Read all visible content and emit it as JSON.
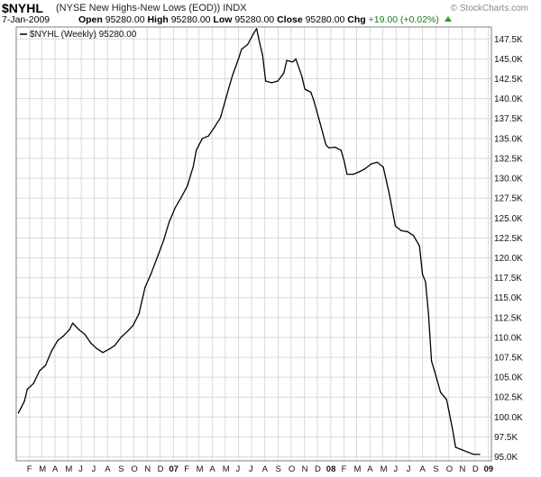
{
  "header": {
    "symbol": "$NYHL",
    "description": "(NYSE New Highs-New Lows (EOD)) INDX",
    "brand": "© StockCharts.com",
    "date": "7-Jan-2009",
    "open_label": "Open",
    "open_value": "95280.00",
    "high_label": "High",
    "high_value": "95280.00",
    "low_label": "Low",
    "low_value": "95280.00",
    "close_label": "Close",
    "close_value": "95280.00",
    "chg_label": "Chg",
    "chg_value": "+19.00 (+0.02%)",
    "chg_icon": "up-triangle-icon"
  },
  "legend": {
    "text": "$NYHL (Weekly) 95280.00"
  },
  "colors": {
    "line": "#000000",
    "grid": "#d9d9d9",
    "frame": "#808080",
    "chg": "#1a7a1a"
  },
  "chart_data": {
    "type": "line",
    "title": "$NYHL",
    "xlabel": "",
    "ylabel": "",
    "grid": true,
    "legend_position": "top-left",
    "ylim": [
      94500,
      149000
    ],
    "y_ticks": [
      {
        "value": 95000,
        "label": "95.0K"
      },
      {
        "value": 97500,
        "label": "97.5K"
      },
      {
        "value": 100000,
        "label": "100.0K"
      },
      {
        "value": 102500,
        "label": "102.5K"
      },
      {
        "value": 105000,
        "label": "105.0K"
      },
      {
        "value": 107500,
        "label": "107.5K"
      },
      {
        "value": 110000,
        "label": "110.0K"
      },
      {
        "value": 112500,
        "label": "112.5K"
      },
      {
        "value": 115000,
        "label": "115.0K"
      },
      {
        "value": 117500,
        "label": "117.5K"
      },
      {
        "value": 120000,
        "label": "120.0K"
      },
      {
        "value": 122500,
        "label": "122.5K"
      },
      {
        "value": 125000,
        "label": "125.0K"
      },
      {
        "value": 127500,
        "label": "127.5K"
      },
      {
        "value": 130000,
        "label": "130.0K"
      },
      {
        "value": 132500,
        "label": "132.5K"
      },
      {
        "value": 135000,
        "label": "135.0K"
      },
      {
        "value": 137500,
        "label": "137.5K"
      },
      {
        "value": 140000,
        "label": "140.0K"
      },
      {
        "value": 142500,
        "label": "142.5K"
      },
      {
        "value": 145000,
        "label": "145.0K"
      },
      {
        "value": 147500,
        "label": "147.5K"
      }
    ],
    "x_ticks": [
      {
        "date": "2006-02-01",
        "label": "F",
        "bold": false
      },
      {
        "date": "2006-03-01",
        "label": "M",
        "bold": false
      },
      {
        "date": "2006-04-01",
        "label": "A",
        "bold": false
      },
      {
        "date": "2006-05-01",
        "label": "M",
        "bold": false
      },
      {
        "date": "2006-06-01",
        "label": "J",
        "bold": false
      },
      {
        "date": "2006-07-01",
        "label": "J",
        "bold": false
      },
      {
        "date": "2006-08-01",
        "label": "A",
        "bold": false
      },
      {
        "date": "2006-09-01",
        "label": "S",
        "bold": false
      },
      {
        "date": "2006-10-01",
        "label": "O",
        "bold": false
      },
      {
        "date": "2006-11-01",
        "label": "N",
        "bold": false
      },
      {
        "date": "2006-12-01",
        "label": "D",
        "bold": false
      },
      {
        "date": "2007-01-01",
        "label": "07",
        "bold": true
      },
      {
        "date": "2007-02-01",
        "label": "F",
        "bold": false
      },
      {
        "date": "2007-03-01",
        "label": "M",
        "bold": false
      },
      {
        "date": "2007-04-01",
        "label": "A",
        "bold": false
      },
      {
        "date": "2007-05-01",
        "label": "M",
        "bold": false
      },
      {
        "date": "2007-06-01",
        "label": "J",
        "bold": false
      },
      {
        "date": "2007-07-01",
        "label": "J",
        "bold": false
      },
      {
        "date": "2007-08-01",
        "label": "A",
        "bold": false
      },
      {
        "date": "2007-09-01",
        "label": "S",
        "bold": false
      },
      {
        "date": "2007-10-01",
        "label": "O",
        "bold": false
      },
      {
        "date": "2007-11-01",
        "label": "N",
        "bold": false
      },
      {
        "date": "2007-12-01",
        "label": "D",
        "bold": false
      },
      {
        "date": "2008-01-01",
        "label": "08",
        "bold": true
      },
      {
        "date": "2008-02-01",
        "label": "F",
        "bold": false
      },
      {
        "date": "2008-03-01",
        "label": "M",
        "bold": false
      },
      {
        "date": "2008-04-01",
        "label": "A",
        "bold": false
      },
      {
        "date": "2008-05-01",
        "label": "M",
        "bold": false
      },
      {
        "date": "2008-06-01",
        "label": "J",
        "bold": false
      },
      {
        "date": "2008-07-01",
        "label": "J",
        "bold": false
      },
      {
        "date": "2008-08-01",
        "label": "A",
        "bold": false
      },
      {
        "date": "2008-09-01",
        "label": "S",
        "bold": false
      },
      {
        "date": "2008-10-01",
        "label": "O",
        "bold": false
      },
      {
        "date": "2008-11-01",
        "label": "N",
        "bold": false
      },
      {
        "date": "2008-12-01",
        "label": "D",
        "bold": false
      },
      {
        "date": "2009-01-01",
        "label": "09",
        "bold": true
      }
    ],
    "series": [
      {
        "name": "$NYHL (Weekly)",
        "points": [
          [
            "2006-01-06",
            100500
          ],
          [
            "2006-01-20",
            102000
          ],
          [
            "2006-01-27",
            103500
          ],
          [
            "2006-02-10",
            104200
          ],
          [
            "2006-02-24",
            105800
          ],
          [
            "2006-03-10",
            106500
          ],
          [
            "2006-03-24",
            108300
          ],
          [
            "2006-04-07",
            109600
          ],
          [
            "2006-04-21",
            110200
          ],
          [
            "2006-05-05",
            111000
          ],
          [
            "2006-05-12",
            111800
          ],
          [
            "2006-05-26",
            111000
          ],
          [
            "2006-06-09",
            110400
          ],
          [
            "2006-06-23",
            109300
          ],
          [
            "2006-07-07",
            108600
          ],
          [
            "2006-07-21",
            108100
          ],
          [
            "2006-08-04",
            108500
          ],
          [
            "2006-08-18",
            109000
          ],
          [
            "2006-09-01",
            110000
          ],
          [
            "2006-09-15",
            110700
          ],
          [
            "2006-09-29",
            111500
          ],
          [
            "2006-10-13",
            113000
          ],
          [
            "2006-10-27",
            116300
          ],
          [
            "2006-11-10",
            118000
          ],
          [
            "2006-11-24",
            120000
          ],
          [
            "2006-12-08",
            122000
          ],
          [
            "2006-12-22",
            124500
          ],
          [
            "2007-01-05",
            126300
          ],
          [
            "2007-01-19",
            127600
          ],
          [
            "2007-02-02",
            129000
          ],
          [
            "2007-02-16",
            131500
          ],
          [
            "2007-02-23",
            133500
          ],
          [
            "2007-03-09",
            135000
          ],
          [
            "2007-03-23",
            135300
          ],
          [
            "2007-04-06",
            136400
          ],
          [
            "2007-04-20",
            137600
          ],
          [
            "2007-05-04",
            140300
          ],
          [
            "2007-05-18",
            142900
          ],
          [
            "2007-06-01",
            145000
          ],
          [
            "2007-06-08",
            146200
          ],
          [
            "2007-06-22",
            146800
          ],
          [
            "2007-07-06",
            148200
          ],
          [
            "2007-07-13",
            148800
          ],
          [
            "2007-07-20",
            147000
          ],
          [
            "2007-07-27",
            145400
          ],
          [
            "2007-08-03",
            142200
          ],
          [
            "2007-08-17",
            142000
          ],
          [
            "2007-08-31",
            142200
          ],
          [
            "2007-09-14",
            143200
          ],
          [
            "2007-09-21",
            144800
          ],
          [
            "2007-10-05",
            144600
          ],
          [
            "2007-10-12",
            145000
          ],
          [
            "2007-10-26",
            142800
          ],
          [
            "2007-11-02",
            141200
          ],
          [
            "2007-11-16",
            140800
          ],
          [
            "2007-11-23",
            139700
          ],
          [
            "2007-12-07",
            137000
          ],
          [
            "2007-12-21",
            134200
          ],
          [
            "2007-12-28",
            133800
          ],
          [
            "2008-01-11",
            133900
          ],
          [
            "2008-01-25",
            133500
          ],
          [
            "2008-02-01",
            132200
          ],
          [
            "2008-02-08",
            130500
          ],
          [
            "2008-02-22",
            130500
          ],
          [
            "2008-03-07",
            130800
          ],
          [
            "2008-03-21",
            131200
          ],
          [
            "2008-04-04",
            131800
          ],
          [
            "2008-04-18",
            132000
          ],
          [
            "2008-05-02",
            131400
          ],
          [
            "2008-05-16",
            128000
          ],
          [
            "2008-05-30",
            124000
          ],
          [
            "2008-06-13",
            123400
          ],
          [
            "2008-06-27",
            123300
          ],
          [
            "2008-07-11",
            122800
          ],
          [
            "2008-07-25",
            121500
          ],
          [
            "2008-08-01",
            117900
          ],
          [
            "2008-08-08",
            117000
          ],
          [
            "2008-08-15",
            113000
          ],
          [
            "2008-08-22",
            107000
          ],
          [
            "2008-08-29",
            105800
          ],
          [
            "2008-09-12",
            103100
          ],
          [
            "2008-09-26",
            102200
          ],
          [
            "2008-10-10",
            98400
          ],
          [
            "2008-10-17",
            96200
          ],
          [
            "2008-10-31",
            95900
          ],
          [
            "2008-11-14",
            95600
          ],
          [
            "2008-11-28",
            95300
          ],
          [
            "2008-12-12",
            95300
          ]
        ]
      }
    ]
  }
}
